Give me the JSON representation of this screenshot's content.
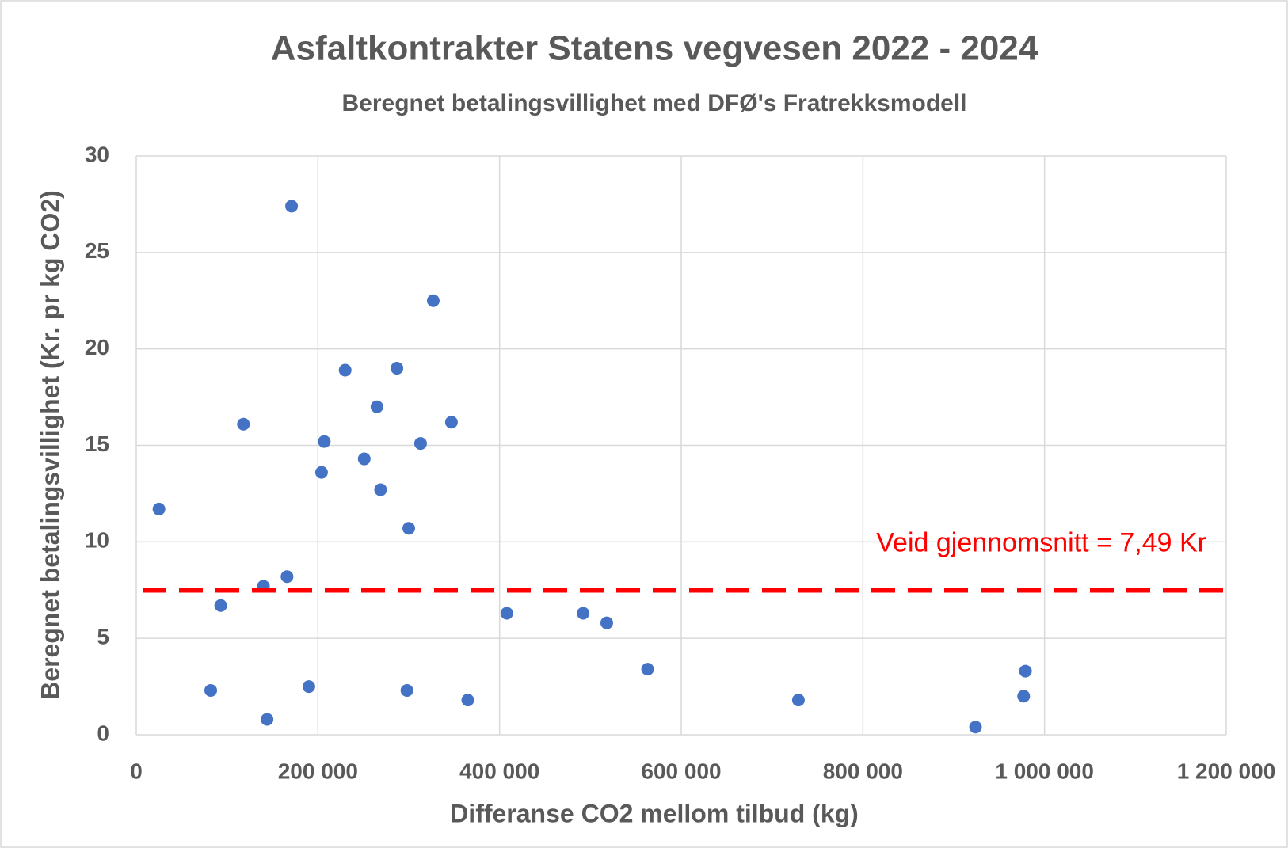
{
  "chart_data": {
    "type": "scatter",
    "title": "Asfaltkontrakter Statens vegvesen 2022 - 2024",
    "subtitle": "Beregnet betalingsvillighet med DFØ's Fratrekksmodell",
    "x_label": "Differanse CO2 mellom tilbud (kg)",
    "y_label": "Beregnet betalingsvillighet (Kr. pr kg CO2)",
    "annotation": "Veid gjennomsnitt = 7,49 Kr",
    "reference_line": {
      "value": 7.49,
      "color": "#ff0000"
    },
    "color": "#4472c4",
    "x": [
      25000,
      82000,
      93000,
      118000,
      140000,
      144000,
      166000,
      171000,
      190000,
      204000,
      207000,
      230000,
      251000,
      265000,
      269000,
      287000,
      298000,
      300000,
      313000,
      327000,
      347000,
      365000,
      408000,
      492000,
      518000,
      563000,
      729000,
      924000,
      977000,
      979000
    ],
    "values": [
      11.7,
      2.3,
      6.7,
      16.1,
      7.7,
      0.8,
      8.2,
      27.4,
      2.5,
      13.6,
      15.2,
      18.9,
      14.3,
      17.0,
      12.7,
      19.0,
      2.3,
      10.7,
      15.1,
      22.5,
      16.2,
      1.8,
      6.3,
      6.3,
      5.8,
      3.4,
      1.8,
      0.4,
      2.0,
      3.3
    ],
    "xlim": [
      0,
      1200000
    ],
    "xticks": [
      0,
      {
        "value": 200000,
        "label": "200 000"
      },
      {
        "value": 400000,
        "label": "400 000"
      },
      {
        "value": 600000,
        "label": "600 000"
      },
      {
        "value": 800000,
        "label": "800 000"
      },
      {
        "value": 1000000,
        "label": "1 000 000"
      },
      {
        "value": 1200000,
        "label": "1 200 000"
      }
    ],
    "ylim": [
      0,
      30
    ],
    "yticks": [
      0,
      5,
      10,
      15,
      20,
      25,
      30
    ],
    "grid": true
  }
}
